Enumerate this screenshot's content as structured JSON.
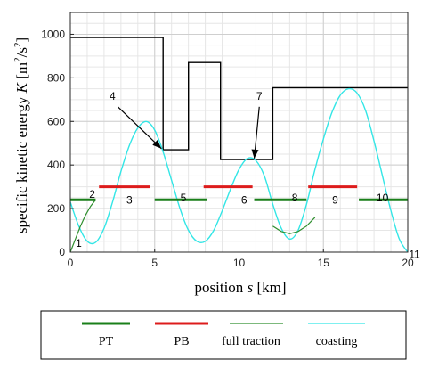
{
  "chart_data": {
    "type": "line",
    "xlabel_prefix": "position ",
    "xlabel_var": "s",
    "xlabel_unit": " [km]",
    "ylabel_prefix": "specific kinetic energy ",
    "ylabel_var": "K",
    "ylabel_unit_open": " [m",
    "ylabel_unit_mid": "/s",
    "ylabel_unit_close": "]",
    "ylabel_sup": "2",
    "xlim": [
      0,
      20
    ],
    "ylim": [
      0,
      1100
    ],
    "xticks": [
      0,
      5,
      10,
      15,
      20
    ],
    "yticks": [
      0,
      200,
      400,
      600,
      800,
      1000
    ],
    "grid": true,
    "legend_position": "below",
    "colors": {
      "limit": "#000000",
      "pt": "#1a7f1a",
      "pb": "#dd1c1c",
      "full_traction": "#2f8f2f",
      "coasting": "#33e6e6"
    },
    "speed_limit": {
      "x": [
        0,
        5.5,
        5.5,
        7,
        7,
        8.9,
        8.9,
        10.8,
        12,
        12,
        20
      ],
      "y": [
        985,
        985,
        470,
        470,
        870,
        870,
        425,
        425,
        425,
        755,
        755
      ]
    },
    "segments": [
      {
        "kind": "pt",
        "x0": 0.0,
        "x1": 1.5,
        "y": 240
      },
      {
        "kind": "pb",
        "x0": 1.7,
        "x1": 4.7,
        "y": 300
      },
      {
        "kind": "pt",
        "x0": 5.0,
        "x1": 8.1,
        "y": 240
      },
      {
        "kind": "pb",
        "x0": 7.9,
        "x1": 10.8,
        "y": 300
      },
      {
        "kind": "pt",
        "x0": 10.9,
        "x1": 14.0,
        "y": 240
      },
      {
        "kind": "pb",
        "x0": 14.1,
        "x1": 17.0,
        "y": 300
      },
      {
        "kind": "pt",
        "x0": 17.1,
        "x1": 20.0,
        "y": 240
      }
    ],
    "full_traction": [
      {
        "x": [
          0,
          0.3,
          0.6,
          0.9,
          1.2,
          1.5
        ],
        "y": [
          0,
          60,
          120,
          170,
          210,
          240
        ]
      },
      {
        "x": [
          12.0,
          12.5,
          13.0,
          13.5,
          14.0,
          14.5
        ],
        "y": [
          120,
          95,
          85,
          95,
          120,
          160
        ]
      }
    ],
    "coasting": {
      "x": [
        0.0,
        0.5,
        1.0,
        1.5,
        2.0,
        2.5,
        3.0,
        3.5,
        4.0,
        4.5,
        5.0,
        5.5,
        6.0,
        6.5,
        7.0,
        7.5,
        8.0,
        8.5,
        9.0,
        9.5,
        10.0,
        10.5,
        11.0,
        11.5,
        12.0,
        12.5,
        13.0,
        13.5,
        14.0,
        14.5,
        15.0,
        15.5,
        16.0,
        16.5,
        17.0,
        17.5,
        18.0,
        18.5,
        19.0,
        19.5,
        20.0
      ],
      "y": [
        230,
        120,
        50,
        45,
        110,
        230,
        370,
        490,
        570,
        600,
        560,
        460,
        330,
        200,
        100,
        50,
        50,
        100,
        190,
        290,
        380,
        430,
        420,
        350,
        220,
        110,
        60,
        100,
        220,
        380,
        520,
        640,
        720,
        750,
        730,
        650,
        510,
        350,
        190,
        60,
        0
      ]
    },
    "annotations": [
      {
        "label": "1",
        "x": 0.5,
        "y": 40
      },
      {
        "label": "2",
        "x": 1.3,
        "y": 265
      },
      {
        "label": "3",
        "x": 3.5,
        "y": 240
      },
      {
        "label": "5",
        "x": 6.7,
        "y": 250
      },
      {
        "label": "6",
        "x": 10.3,
        "y": 240
      },
      {
        "label": "8",
        "x": 13.3,
        "y": 250
      },
      {
        "label": "9",
        "x": 15.7,
        "y": 240
      },
      {
        "label": "10",
        "x": 18.5,
        "y": 250
      },
      {
        "label": "11",
        "x": 20.4,
        "y": -10
      }
    ],
    "arrows": [
      {
        "label": "4",
        "x_text": 2.5,
        "y_text": 700,
        "x_tip": 5.4,
        "y_tip": 475
      },
      {
        "label": "7",
        "x_text": 11.2,
        "y_text": 700,
        "x_tip": 10.9,
        "y_tip": 430
      }
    ],
    "legend": [
      {
        "key": "pt",
        "label": "PT"
      },
      {
        "key": "pb",
        "label": "PB"
      },
      {
        "key": "full_traction",
        "label": "full traction"
      },
      {
        "key": "coasting",
        "label": "coasting"
      }
    ]
  }
}
